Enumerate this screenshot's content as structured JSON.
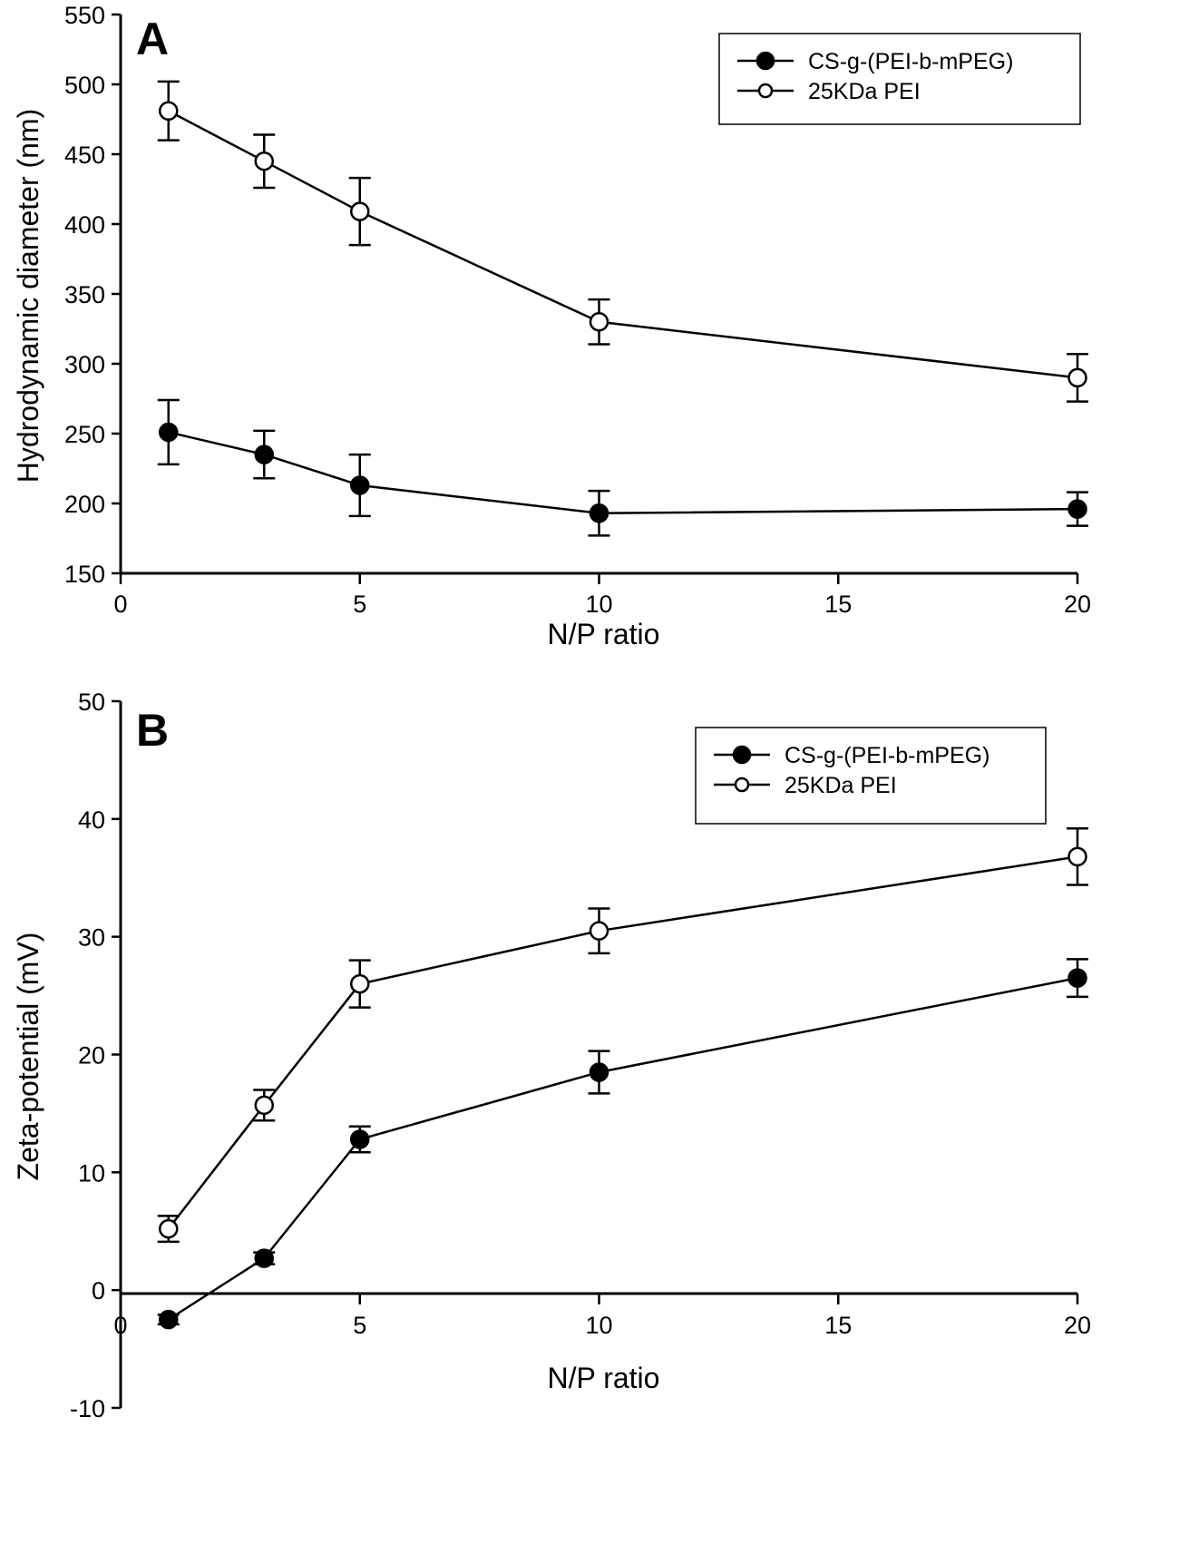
{
  "chart_data": [
    {
      "type": "line",
      "panel_label": "A",
      "xlabel": "N/P ratio",
      "ylabel": "Hydrodynamic diameter (nm)",
      "xlim": [
        0,
        20
      ],
      "ylim": [
        150,
        550
      ],
      "xticks": [
        0,
        5,
        10,
        15,
        20
      ],
      "yticks": [
        150,
        200,
        250,
        300,
        350,
        400,
        450,
        500,
        550
      ],
      "grid": false,
      "legend_position": "top-right",
      "series": [
        {
          "name": "CS-g-(PEI-b-mPEG)",
          "marker": "filled-circle",
          "x": [
            1,
            3,
            5,
            10,
            20
          ],
          "values": [
            251,
            235,
            213,
            193,
            196
          ],
          "errors": [
            23,
            17,
            22,
            16,
            12
          ]
        },
        {
          "name": "25KDa PEI",
          "marker": "open-circle",
          "x": [
            1,
            3,
            5,
            10,
            20
          ],
          "values": [
            481,
            445,
            409,
            330,
            290
          ],
          "errors": [
            21,
            19,
            24,
            16,
            17
          ]
        }
      ]
    },
    {
      "type": "line",
      "panel_label": "B",
      "xlabel": "N/P ratio",
      "ylabel": "Zeta-potential (mV)",
      "xlim": [
        0,
        20
      ],
      "ylim": [
        -10,
        50
      ],
      "xticks": [
        0,
        5,
        10,
        15,
        20
      ],
      "yticks": [
        -10,
        0,
        10,
        20,
        30,
        40,
        50
      ],
      "grid": false,
      "legend_position": "top-right",
      "series": [
        {
          "name": "CS-g-(PEI-b-mPEG)",
          "marker": "filled-circle",
          "x": [
            1,
            3,
            5,
            10,
            20
          ],
          "values": [
            -2.5,
            2.7,
            12.8,
            18.5,
            26.5
          ],
          "errors": [
            0.4,
            0.5,
            1.1,
            1.8,
            1.6
          ]
        },
        {
          "name": "25KDa PEI",
          "marker": "open-circle",
          "x": [
            1,
            3,
            5,
            10,
            20
          ],
          "values": [
            5.2,
            15.7,
            26.0,
            30.5,
            36.8
          ],
          "errors": [
            1.1,
            1.3,
            2.0,
            1.9,
            2.4
          ]
        }
      ]
    }
  ]
}
